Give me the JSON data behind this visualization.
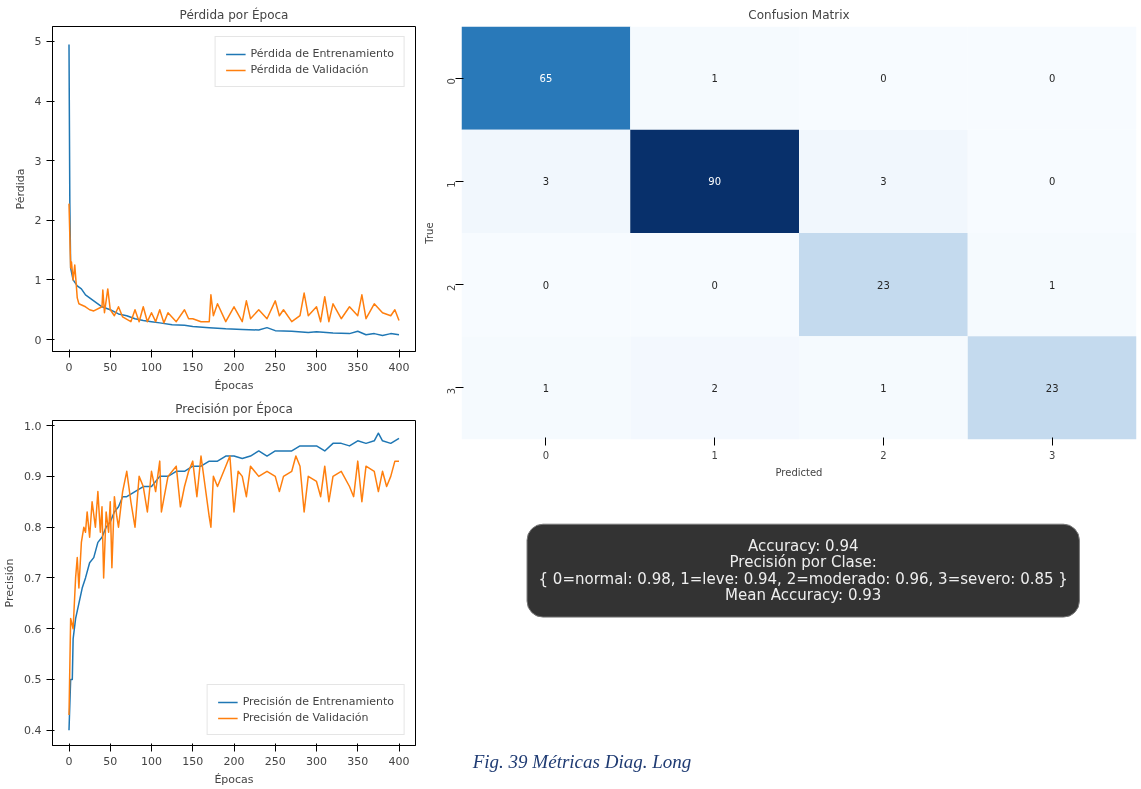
{
  "chart_data": [
    {
      "type": "line",
      "title": "Pérdida por Época",
      "xlabel": "Épocas",
      "ylabel": "Pérdida",
      "xlim": [
        -20,
        420
      ],
      "ylim": [
        -0.2,
        5.25
      ],
      "xticks": [
        0,
        50,
        100,
        150,
        200,
        250,
        300,
        350,
        400
      ],
      "yticks": [
        0,
        1,
        2,
        3,
        4,
        5
      ],
      "legend": "top right",
      "grid": false,
      "series": [
        {
          "name": "Pérdida de Entrenamiento",
          "color": "#1f77b4",
          "x": [
            0,
            1,
            2,
            5,
            10,
            15,
            20,
            30,
            40,
            50,
            60,
            70,
            80,
            90,
            100,
            110,
            125,
            140,
            150,
            170,
            190,
            210,
            230,
            240,
            250,
            270,
            290,
            300,
            320,
            340,
            350,
            360,
            370,
            380,
            390,
            400
          ],
          "values": [
            4.95,
            2.3,
            1.2,
            1.0,
            0.9,
            0.85,
            0.75,
            0.65,
            0.55,
            0.5,
            0.43,
            0.4,
            0.35,
            0.32,
            0.3,
            0.28,
            0.25,
            0.24,
            0.22,
            0.2,
            0.18,
            0.17,
            0.16,
            0.2,
            0.15,
            0.14,
            0.12,
            0.13,
            0.11,
            0.1,
            0.14,
            0.08,
            0.1,
            0.07,
            0.1,
            0.08
          ]
        },
        {
          "name": "Pérdida de Validación",
          "color": "#ff7f0e",
          "x": [
            0,
            2,
            3,
            5,
            7,
            10,
            12,
            20,
            25,
            30,
            40,
            41,
            43,
            47,
            50,
            55,
            60,
            65,
            75,
            80,
            85,
            90,
            95,
            100,
            105,
            110,
            115,
            120,
            130,
            140,
            145,
            150,
            160,
            170,
            172,
            175,
            180,
            190,
            200,
            210,
            215,
            220,
            230,
            240,
            250,
            255,
            260,
            270,
            280,
            285,
            290,
            300,
            305,
            310,
            315,
            320,
            330,
            340,
            350,
            355,
            360,
            370,
            380,
            390,
            395,
            400
          ],
          "values": [
            2.28,
            1.2,
            1.3,
            1.0,
            1.25,
            0.7,
            0.6,
            0.55,
            0.5,
            0.48,
            0.55,
            0.83,
            0.45,
            0.85,
            0.5,
            0.4,
            0.55,
            0.38,
            0.3,
            0.5,
            0.3,
            0.55,
            0.3,
            0.45,
            0.3,
            0.5,
            0.28,
            0.45,
            0.3,
            0.5,
            0.35,
            0.35,
            0.3,
            0.3,
            0.75,
            0.4,
            0.6,
            0.3,
            0.55,
            0.3,
            0.65,
            0.35,
            0.5,
            0.35,
            0.65,
            0.4,
            0.5,
            0.3,
            0.4,
            0.78,
            0.4,
            0.55,
            0.3,
            0.72,
            0.3,
            0.6,
            0.35,
            0.55,
            0.4,
            0.75,
            0.35,
            0.6,
            0.45,
            0.4,
            0.5,
            0.32
          ]
        }
      ]
    },
    {
      "type": "line",
      "title": "Precisión por Época",
      "xlabel": "Épocas",
      "ylabel": "Precisión",
      "xlim": [
        -20,
        420
      ],
      "ylim": [
        0.37,
        1.01
      ],
      "xticks": [
        0,
        50,
        100,
        150,
        200,
        250,
        300,
        350,
        400
      ],
      "yticks": [
        0.4,
        0.5,
        0.6,
        0.7,
        0.8,
        0.9,
        {
          "value": 1,
          "label": "1.0"
        }
      ],
      "legend": "bottom right",
      "grid": false,
      "series": [
        {
          "name": "Precisión de Entrenamiento",
          "color": "#1f77b4",
          "x": [
            0,
            2,
            4,
            5,
            8,
            12,
            16,
            20,
            25,
            30,
            35,
            40,
            45,
            50,
            55,
            60,
            65,
            70,
            80,
            90,
            100,
            110,
            120,
            130,
            140,
            150,
            160,
            170,
            180,
            190,
            200,
            210,
            220,
            230,
            240,
            250,
            260,
            270,
            280,
            290,
            300,
            310,
            320,
            330,
            340,
            350,
            360,
            370,
            375,
            380,
            390,
            400
          ],
          "values": [
            0.4,
            0.5,
            0.5,
            0.58,
            0.62,
            0.65,
            0.68,
            0.7,
            0.73,
            0.74,
            0.77,
            0.78,
            0.8,
            0.81,
            0.83,
            0.84,
            0.86,
            0.86,
            0.87,
            0.88,
            0.88,
            0.9,
            0.9,
            0.91,
            0.91,
            0.92,
            0.92,
            0.93,
            0.93,
            0.94,
            0.94,
            0.935,
            0.94,
            0.95,
            0.94,
            0.95,
            0.95,
            0.95,
            0.96,
            0.96,
            0.96,
            0.95,
            0.965,
            0.965,
            0.96,
            0.97,
            0.965,
            0.97,
            0.985,
            0.97,
            0.965,
            0.975
          ]
        },
        {
          "name": "Precisión de Validación",
          "color": "#ff7f0e",
          "x": [
            0,
            2,
            5,
            8,
            10,
            12,
            15,
            18,
            20,
            22,
            25,
            28,
            32,
            35,
            38,
            40,
            42,
            45,
            48,
            50,
            52,
            55,
            58,
            60,
            65,
            70,
            75,
            80,
            85,
            90,
            95,
            100,
            105,
            110,
            112,
            120,
            130,
            135,
            140,
            145,
            150,
            155,
            160,
            165,
            170,
            172,
            175,
            180,
            190,
            195,
            200,
            205,
            210,
            215,
            220,
            230,
            240,
            250,
            255,
            260,
            270,
            275,
            280,
            285,
            290,
            300,
            305,
            310,
            315,
            320,
            330,
            340,
            345,
            350,
            355,
            360,
            370,
            375,
            380,
            385,
            390,
            395,
            400
          ],
          "values": [
            0.43,
            0.62,
            0.6,
            0.7,
            0.74,
            0.68,
            0.77,
            0.8,
            0.79,
            0.83,
            0.78,
            0.85,
            0.8,
            0.87,
            0.79,
            0.84,
            0.7,
            0.83,
            0.79,
            0.85,
            0.72,
            0.86,
            0.82,
            0.8,
            0.87,
            0.91,
            0.85,
            0.8,
            0.9,
            0.88,
            0.83,
            0.91,
            0.87,
            0.93,
            0.83,
            0.9,
            0.92,
            0.84,
            0.88,
            0.91,
            0.93,
            0.86,
            0.94,
            0.88,
            0.82,
            0.8,
            0.9,
            0.88,
            0.92,
            0.94,
            0.83,
            0.91,
            0.9,
            0.86,
            0.92,
            0.9,
            0.91,
            0.9,
            0.87,
            0.9,
            0.91,
            0.94,
            0.92,
            0.83,
            0.9,
            0.89,
            0.86,
            0.92,
            0.85,
            0.9,
            0.91,
            0.88,
            0.86,
            0.93,
            0.85,
            0.92,
            0.91,
            0.87,
            0.91,
            0.88,
            0.9,
            0.93,
            0.93
          ]
        }
      ]
    },
    {
      "type": "heatmap",
      "title": "Confusion Matrix",
      "xlabel": "Predicted",
      "ylabel": "True",
      "categories": [
        "0",
        "1",
        "2",
        "3"
      ],
      "y_categories": [
        "0",
        "1",
        "2",
        "3"
      ],
      "data_labels": true,
      "cells": [
        [
          65,
          1,
          0,
          0
        ],
        [
          3,
          90,
          3,
          0
        ],
        [
          0,
          0,
          23,
          1
        ],
        [
          1,
          2,
          1,
          23
        ]
      ]
    },
    {
      "type": "other",
      "annotations": [
        "Accuracy: 0.94",
        "Precisión por Clase:",
        "{ 0=normal: 0.98, 1=leve: 0.94, 2=moderado: 0.96, 3=severo: 0.85 }",
        "Mean Accuracy: 0.93",
        "Fig. 39 Métricas Diag. Long"
      ]
    }
  ]
}
